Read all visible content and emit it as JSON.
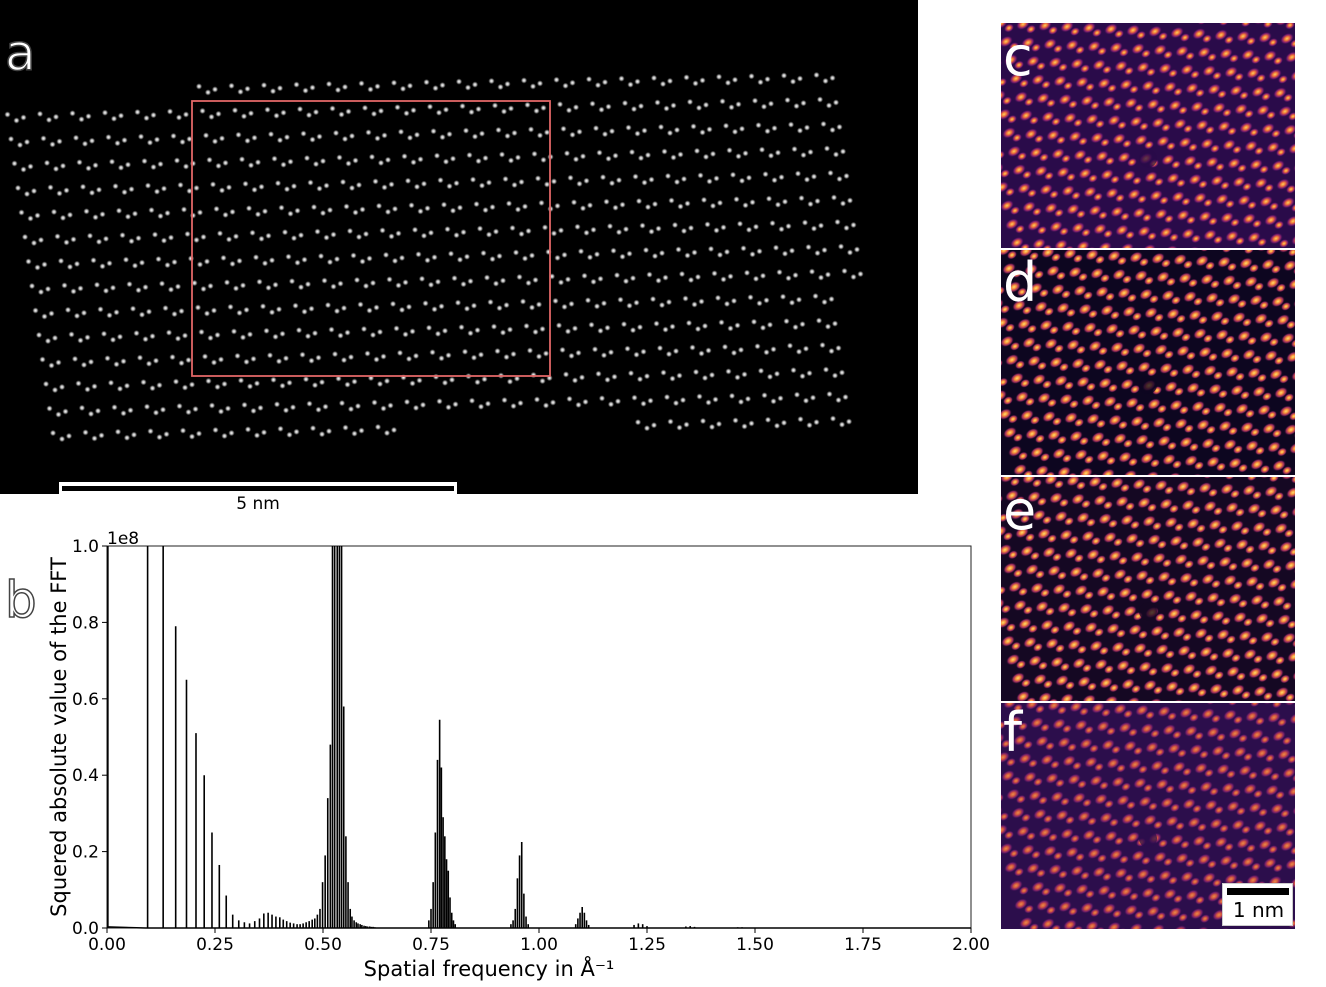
{
  "panels": {
    "a": "a",
    "b": "b",
    "c": "c",
    "d": "d",
    "e": "e",
    "f": "f"
  },
  "scalebar_a": "5 nm",
  "scalebar_f": "1 nm",
  "colors": {
    "roi_box": "#e06666",
    "background": "#000000",
    "spectrum_line": "#000000"
  },
  "chart_data": {
    "type": "bar",
    "xlabel": "Spatial frequency in Å⁻¹",
    "ylabel": "Squered absolute value of the FFT",
    "y_multiplier": "1e8",
    "xlim": [
      0,
      2.0
    ],
    "ylim": [
      0,
      1.0
    ],
    "xticks": [
      "0.00",
      "0.25",
      "0.50",
      "0.75",
      "1.00",
      "1.25",
      "1.50",
      "1.75",
      "2.00"
    ],
    "yticks": [
      "0.0",
      "0.2",
      "0.4",
      "0.6",
      "0.8",
      "1.0"
    ],
    "x": [
      0.002,
      0.094,
      0.13,
      0.159,
      0.184,
      0.206,
      0.225,
      0.243,
      0.26,
      0.276,
      0.291,
      0.305,
      0.318,
      0.33,
      0.342,
      0.353,
      0.363,
      0.373,
      0.382,
      0.391,
      0.4,
      0.408,
      0.416,
      0.424,
      0.432,
      0.44,
      0.447,
      0.454,
      0.461,
      0.468,
      0.475,
      0.481,
      0.487,
      0.493,
      0.499,
      0.505,
      0.511,
      0.517,
      0.522,
      0.527,
      0.533,
      0.538,
      0.543,
      0.548,
      0.553,
      0.558,
      0.563,
      0.567,
      0.572,
      0.577,
      0.581,
      0.586,
      0.59,
      0.595,
      0.599,
      0.603,
      0.608,
      0.612,
      0.616,
      0.62,
      0.745,
      0.75,
      0.755,
      0.76,
      0.765,
      0.77,
      0.774,
      0.778,
      0.782,
      0.786,
      0.79,
      0.794,
      0.798,
      0.802,
      0.806,
      0.935,
      0.94,
      0.945,
      0.95,
      0.955,
      0.96,
      0.965,
      0.97,
      0.975,
      1.085,
      1.09,
      1.095,
      1.1,
      1.105,
      1.11,
      1.115,
      1.22,
      1.23,
      1.24,
      1.25,
      1.34,
      1.35,
      1.36,
      1.46,
      1.47
    ],
    "values": [
      1.0,
      1.0,
      1.0,
      0.79,
      0.65,
      0.51,
      0.4,
      0.25,
      0.165,
      0.085,
      0.035,
      0.02,
      0.015,
      0.012,
      0.018,
      0.025,
      0.038,
      0.04,
      0.035,
      0.03,
      0.028,
      0.022,
      0.018,
      0.014,
      0.012,
      0.01,
      0.01,
      0.012,
      0.015,
      0.018,
      0.022,
      0.025,
      0.035,
      0.05,
      0.12,
      0.19,
      0.34,
      0.48,
      1.0,
      1.0,
      1.0,
      1.0,
      1.0,
      0.58,
      0.24,
      0.12,
      0.05,
      0.03,
      0.02,
      0.015,
      0.012,
      0.01,
      0.008,
      0.006,
      0.005,
      0.004,
      0.004,
      0.003,
      0.003,
      0.002,
      0.02,
      0.05,
      0.12,
      0.25,
      0.44,
      0.545,
      0.42,
      0.29,
      0.24,
      0.18,
      0.15,
      0.08,
      0.04,
      0.02,
      0.01,
      0.01,
      0.02,
      0.05,
      0.13,
      0.19,
      0.225,
      0.09,
      0.03,
      0.01,
      0.01,
      0.025,
      0.04,
      0.055,
      0.04,
      0.02,
      0.008,
      0.008,
      0.012,
      0.01,
      0.005,
      0.004,
      0.005,
      0.003,
      0.002,
      0.002
    ]
  }
}
